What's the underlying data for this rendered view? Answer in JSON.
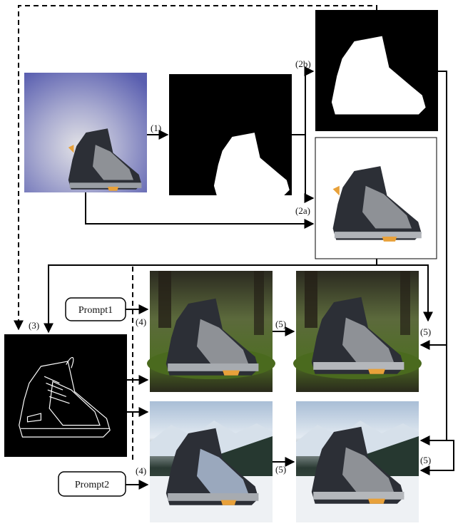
{
  "prompts": {
    "p1": "Prompt1",
    "p2": "Prompt2"
  },
  "steps": {
    "s1": "(1)",
    "s2a": "(2a)",
    "s2b": "(2b)",
    "s3": "(3)",
    "s4a": "(4)",
    "s4b": "(4)",
    "s5a": "(5)",
    "s5b": "(5)",
    "s5c": "(5)",
    "s5d": "(5)"
  },
  "colors": {
    "input_bg_top": "#5b5fae",
    "input_bg_center": "#d9d9e0",
    "forest_dark": "#2e3a1e",
    "forest_moss": "#5d7a2a",
    "snow_sky": "#c9d7e6",
    "snow_ground": "#eef1f4",
    "boot_dark": "#2c2f36",
    "boot_grey": "#8e9196",
    "boot_accent": "#e8a13a"
  }
}
